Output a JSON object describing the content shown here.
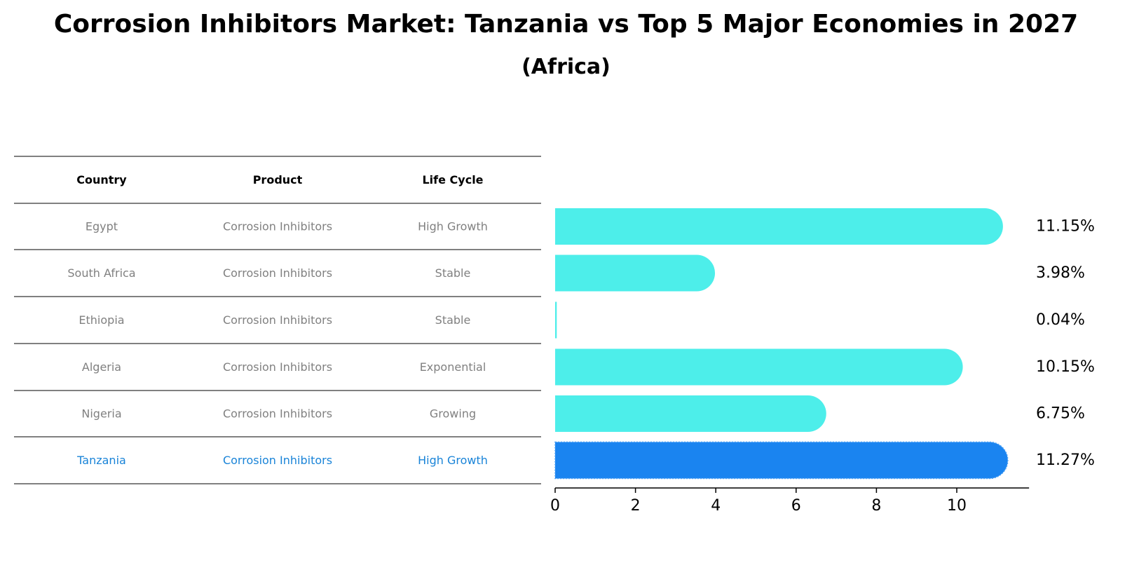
{
  "title": "Corrosion Inhibitors Market: Tanzania vs Top 5 Major Economies in 2027",
  "subtitle": "(Africa)",
  "table": {
    "headers": [
      "Country",
      "Product",
      "Life Cycle"
    ],
    "rows": [
      {
        "country": "Egypt",
        "product": "Corrosion Inhibitors",
        "life_cycle": "High Growth",
        "highlight": false
      },
      {
        "country": "South Africa",
        "product": "Corrosion Inhibitors",
        "life_cycle": "Stable",
        "highlight": false
      },
      {
        "country": "Ethiopia",
        "product": "Corrosion Inhibitors",
        "life_cycle": "Stable",
        "highlight": false
      },
      {
        "country": "Algeria",
        "product": "Corrosion Inhibitors",
        "life_cycle": "Exponential",
        "highlight": false
      },
      {
        "country": "Nigeria",
        "product": "Corrosion Inhibitors",
        "life_cycle": "Growing",
        "highlight": false
      },
      {
        "country": "Tanzania",
        "product": "Corrosion Inhibitors",
        "life_cycle": "High Growth",
        "highlight": true
      }
    ]
  },
  "colors": {
    "bar": "#4deeea",
    "highlight_bar": "#1a84f0",
    "muted_text": "#808080",
    "highlight_text": "#1a84d8"
  },
  "chart_data": {
    "type": "bar",
    "orientation": "horizontal",
    "title": "Corrosion Inhibitors Market: Tanzania vs Top 5 Major Economies in 2027",
    "subtitle": "(Africa)",
    "categories": [
      "Egypt",
      "South Africa",
      "Ethiopia",
      "Algeria",
      "Nigeria",
      "Tanzania"
    ],
    "values": [
      11.15,
      3.98,
      0.04,
      10.15,
      6.75,
      11.27
    ],
    "value_labels": [
      "11.15%",
      "3.98%",
      "0.04%",
      "10.15%",
      "6.75%",
      "11.27%"
    ],
    "xlim": [
      0,
      11.8
    ],
    "xticks": [
      0,
      2,
      4,
      6,
      8,
      10
    ],
    "xlabel": "",
    "ylabel": "",
    "highlight": "Tanzania",
    "grid": false
  }
}
